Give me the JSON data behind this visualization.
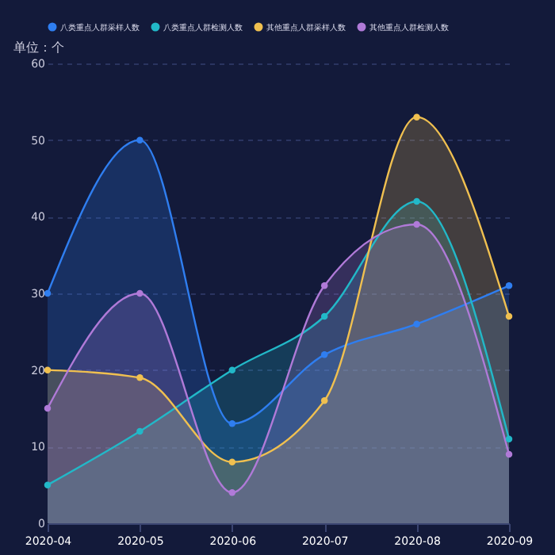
{
  "chart_data": {
    "type": "area",
    "ylabel": "单位：个",
    "categories": [
      "2020-04",
      "2020-05",
      "2020-06",
      "2020-07",
      "2020-08",
      "2020-09"
    ],
    "series": [
      {
        "name": "八类重点人群采样人数",
        "color": "#2f7ef0",
        "values": [
          30,
          50,
          13,
          22,
          26,
          31
        ]
      },
      {
        "name": "八类重点人群检测人数",
        "color": "#22b8c8",
        "values": [
          5,
          12,
          20,
          27,
          42,
          11
        ]
      },
      {
        "name": "其他重点人群采样人数",
        "color": "#f0c050",
        "values": [
          20,
          19,
          8,
          16,
          53,
          27
        ]
      },
      {
        "name": "其他重点人群检测人数",
        "color": "#b07ad8",
        "values": [
          15,
          30,
          4,
          31,
          39,
          9
        ]
      }
    ],
    "ylim": [
      0,
      60
    ],
    "yticks": [
      0,
      10,
      20,
      30,
      40,
      50,
      60
    ],
    "grid": "y",
    "legend": "top",
    "marker": "circle",
    "line_style": "solid"
  }
}
